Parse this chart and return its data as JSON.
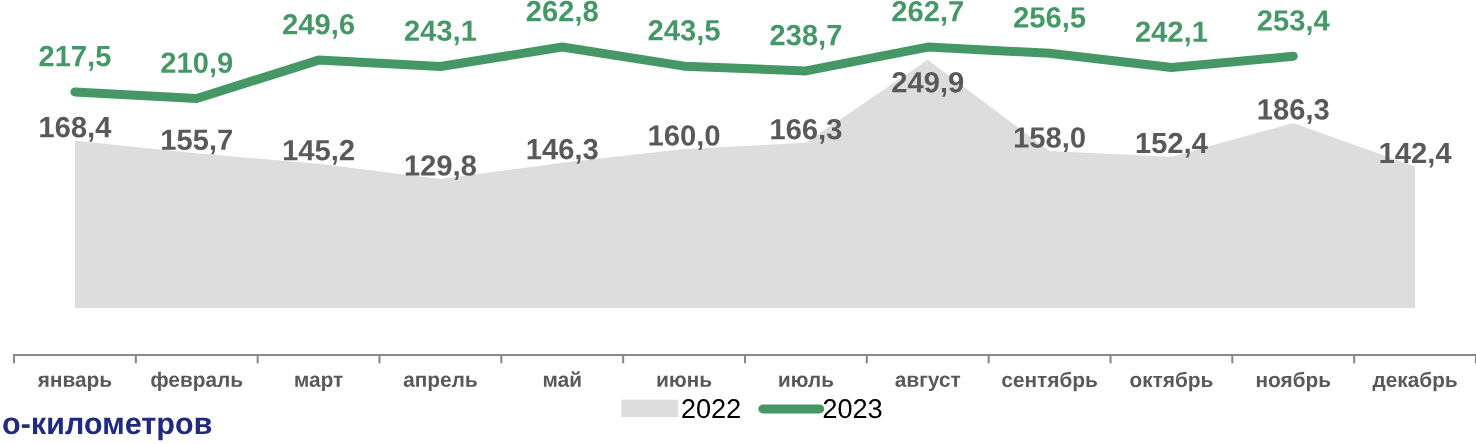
{
  "chart_data": {
    "type": "line",
    "categories": [
      "январь",
      "февраль",
      "март",
      "апрель",
      "май",
      "июнь",
      "июль",
      "август",
      "сентябрь",
      "октябрь",
      "ноябрь",
      "декабрь"
    ],
    "series": [
      {
        "name": "2022",
        "type": "area",
        "color": "#dddddd",
        "values": [
          168.4,
          155.7,
          145.2,
          129.8,
          146.3,
          160.0,
          166.3,
          249.9,
          158.0,
          152.4,
          186.3,
          142.4
        ],
        "value_labels": [
          "168,4",
          "155,7",
          "145,2",
          "129,8",
          "146,3",
          "160,0",
          "166,3",
          "249,9",
          "158,0",
          "152,4",
          "186,3",
          "142,4"
        ]
      },
      {
        "name": "2023",
        "color": "#459866",
        "values": [
          217.5,
          210.9,
          249.6,
          243.1,
          262.8,
          243.5,
          238.7,
          262.7,
          256.5,
          242.1,
          253.4,
          null
        ],
        "value_labels": [
          "217,5",
          "210,9",
          "249,6",
          "243,1",
          "262,8",
          "243,5",
          "238,7",
          "262,7",
          "256,5",
          "242,1",
          "253,4",
          null
        ]
      }
    ],
    "tick_labels": "x",
    "legend": "bottom",
    "marker": "none",
    "line_style": "solid",
    "annotations": [
      "о-километров"
    ]
  }
}
